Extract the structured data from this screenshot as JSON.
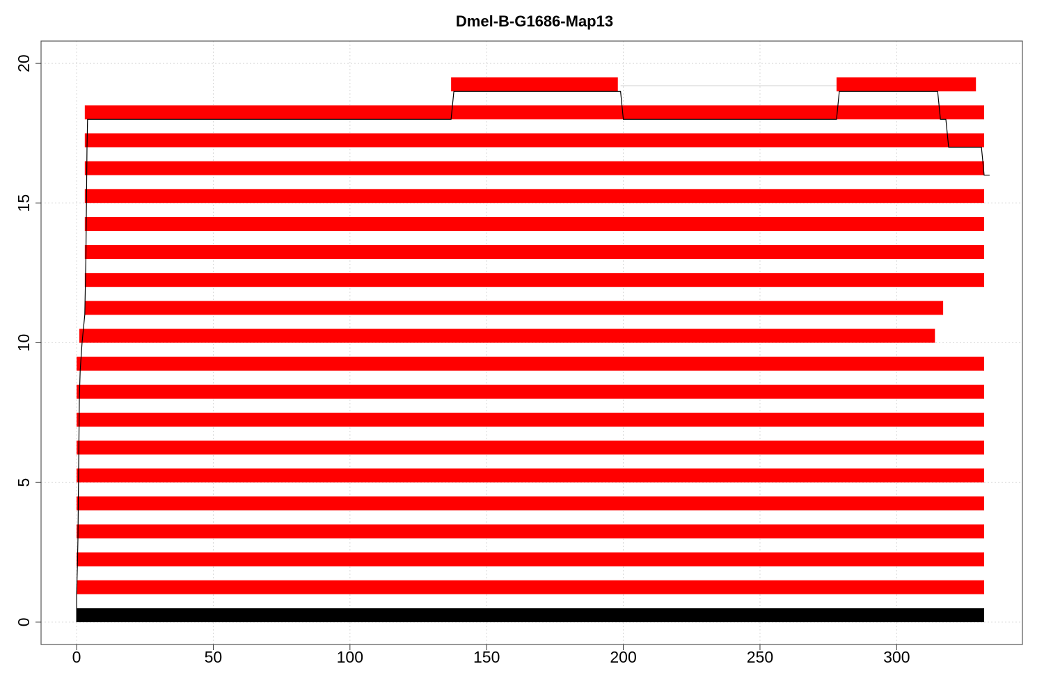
{
  "chart_data": {
    "type": "bar",
    "title": "Dmel-B-G1686-Map13",
    "xlabel": "",
    "ylabel": "",
    "xlim": [
      -13,
      346
    ],
    "ylim": [
      -0.8,
      20.8
    ],
    "x_ticks": [
      0,
      50,
      100,
      150,
      200,
      250,
      300
    ],
    "y_ticks": [
      0,
      5,
      10,
      15,
      20
    ],
    "x_tick_labels": [
      "0",
      "50",
      "100",
      "150",
      "200",
      "250",
      "300"
    ],
    "y_tick_labels": [
      "0",
      "5",
      "10",
      "15",
      "20"
    ],
    "grid": true,
    "reference_bar": {
      "y": 0,
      "start": 0,
      "end": 332,
      "color": "#000000"
    },
    "bar_color": "#ff0000",
    "reads": [
      {
        "row": 1,
        "segments": [
          [
            0,
            332
          ]
        ]
      },
      {
        "row": 2,
        "segments": [
          [
            0,
            332
          ]
        ]
      },
      {
        "row": 3,
        "segments": [
          [
            0,
            332
          ]
        ]
      },
      {
        "row": 4,
        "segments": [
          [
            0,
            332
          ]
        ]
      },
      {
        "row": 5,
        "segments": [
          [
            0,
            332
          ]
        ]
      },
      {
        "row": 6,
        "segments": [
          [
            0,
            332
          ]
        ]
      },
      {
        "row": 7,
        "segments": [
          [
            0,
            332
          ]
        ]
      },
      {
        "row": 8,
        "segments": [
          [
            0,
            332
          ]
        ]
      },
      {
        "row": 9,
        "segments": [
          [
            0,
            332
          ]
        ]
      },
      {
        "row": 10,
        "segments": [
          [
            1,
            314
          ]
        ]
      },
      {
        "row": 11,
        "segments": [
          [
            3,
            317
          ]
        ]
      },
      {
        "row": 12,
        "segments": [
          [
            3,
            332
          ]
        ]
      },
      {
        "row": 13,
        "segments": [
          [
            3,
            332
          ]
        ]
      },
      {
        "row": 14,
        "segments": [
          [
            3,
            332
          ]
        ]
      },
      {
        "row": 15,
        "segments": [
          [
            3,
            332
          ]
        ]
      },
      {
        "row": 16,
        "segments": [
          [
            3,
            332
          ]
        ]
      },
      {
        "row": 17,
        "segments": [
          [
            3,
            332
          ]
        ]
      },
      {
        "row": 18,
        "segments": [
          [
            3,
            332
          ]
        ]
      },
      {
        "row": 19,
        "segments": [
          [
            137,
            198
          ],
          [
            278,
            329
          ]
        ]
      }
    ],
    "step_line": [
      [
        0,
        0
      ],
      [
        0,
        1
      ],
      [
        0.3,
        2
      ],
      [
        0.5,
        3
      ],
      [
        0.6,
        4
      ],
      [
        0.7,
        5
      ],
      [
        0.8,
        6
      ],
      [
        0.9,
        7
      ],
      [
        1,
        8
      ],
      [
        1.3,
        9
      ],
      [
        2,
        10
      ],
      [
        3,
        11
      ],
      [
        3.2,
        12
      ],
      [
        3.4,
        13
      ],
      [
        3.5,
        14
      ],
      [
        3.6,
        15
      ],
      [
        3.7,
        16
      ],
      [
        3.8,
        17
      ],
      [
        4,
        18
      ],
      [
        137,
        18
      ],
      [
        138,
        19
      ],
      [
        199,
        19
      ],
      [
        200,
        18
      ],
      [
        278,
        18
      ],
      [
        279,
        19
      ],
      [
        315,
        19
      ],
      [
        316,
        18
      ],
      [
        318,
        18
      ],
      [
        319,
        17
      ],
      [
        331,
        17
      ],
      [
        332,
        16
      ],
      [
        334,
        16
      ]
    ],
    "link_lines": [
      {
        "from": [
          199,
          19.2
        ],
        "to": [
          278,
          19.2
        ]
      }
    ]
  }
}
